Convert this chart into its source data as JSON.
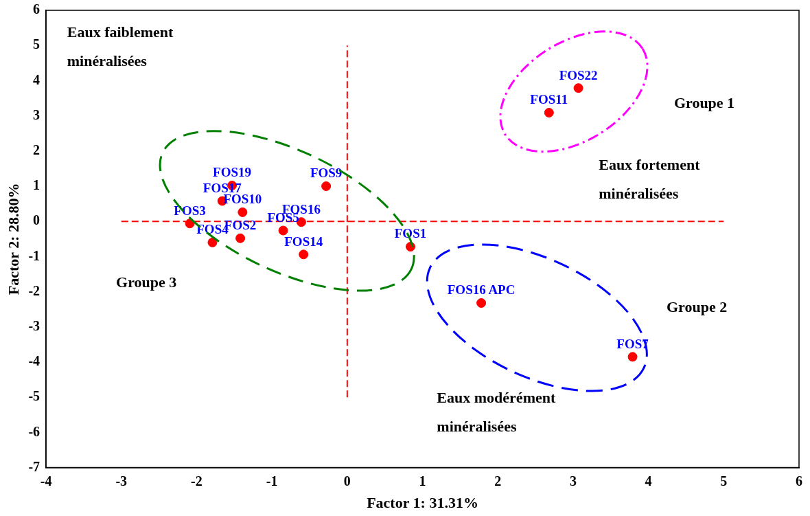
{
  "chart_data": {
    "type": "scatter",
    "xlabel": "Factor 1: 31.31%",
    "ylabel": "Factor 2: 28.80%",
    "xlim": [
      -4,
      6
    ],
    "xticks": [
      -4,
      -3,
      -2,
      -1,
      0,
      1,
      2,
      3,
      4,
      5,
      6
    ],
    "ylim": [
      -7,
      6
    ],
    "yticks": [
      -7,
      -6,
      -5,
      -4,
      -3,
      -2,
      -1,
      0,
      1,
      2,
      3,
      4,
      5,
      6
    ],
    "grid": false,
    "legend": false,
    "series": [
      {
        "type": "scatter",
        "marker": "circle",
        "color": "#ff0000",
        "x": [
          3.07,
          2.68,
          -0.28,
          -1.53,
          -1.66,
          -1.39,
          -2.09,
          -1.79,
          -1.42,
          -0.85,
          -0.61,
          -0.58,
          0.84,
          1.78,
          3.79
        ],
        "values": [
          3.79,
          3.09,
          1.0,
          1.02,
          0.58,
          0.26,
          -0.06,
          -0.6,
          -0.48,
          -0.26,
          -0.02,
          -0.94,
          -0.72,
          -2.32,
          -3.85
        ],
        "value_labels": [
          "FOS22",
          "FOS11",
          "FOS9",
          "FOS19",
          "FOS17",
          "FOS10",
          "FOS3",
          "FOS4",
          "FOS2",
          "FOS5",
          "FOS16",
          "FOS14",
          "FOS1",
          "FOS16 APC",
          "FOS7"
        ]
      },
      {
        "type": "line",
        "color": "#ff0000",
        "line_style": "dashed",
        "x": [
          -3,
          5
        ],
        "values": [
          0,
          0
        ]
      },
      {
        "type": "line",
        "color": "#ff0000",
        "line_style": "dashed",
        "x": [
          0,
          0
        ],
        "values": [
          -5,
          5
        ]
      }
    ],
    "annotations": [
      "Eaux faiblement minéralisées",
      "Groupe 1",
      "Eaux fortement minéralisées",
      "Groupe 3",
      "Groupe 2",
      "Eaux modérément minéralisées"
    ]
  }
}
